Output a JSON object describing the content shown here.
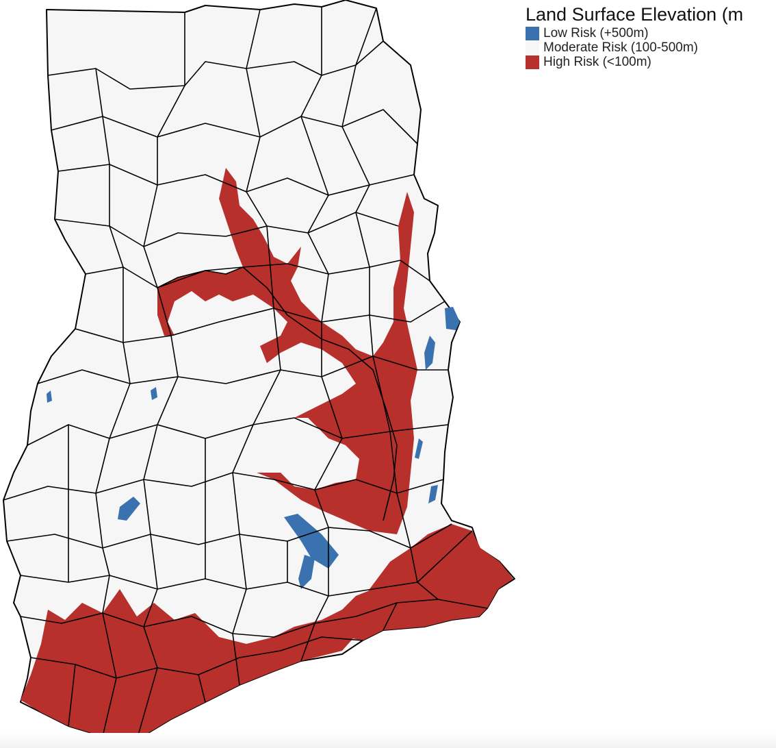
{
  "legend": {
    "title": "Land Surface Elevation (m",
    "items": [
      {
        "label": "Low Risk (+500m)",
        "color": "#3a72b0"
      },
      {
        "label": "Moderate Risk (100-500m)",
        "color": "#f6f6f6"
      },
      {
        "label": "High Risk (<100m)",
        "color": "#b8302c"
      }
    ]
  },
  "colors": {
    "land": "#f6f6f6",
    "border": "#000000",
    "high_risk": "#b8302c",
    "low_risk": "#3a72b0"
  }
}
